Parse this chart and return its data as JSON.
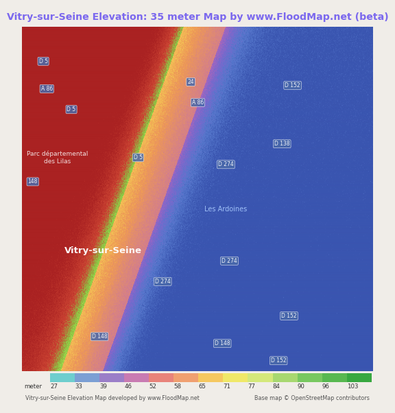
{
  "title": "Vitry-sur-Seine Elevation: 35 meter Map by www.FloodMap.net (beta)",
  "title_color": "#7b68ee",
  "title_bg": "#f0ede8",
  "colorbar_values": [
    27,
    33,
    39,
    46,
    52,
    58,
    65,
    71,
    77,
    84,
    90,
    96,
    103
  ],
  "colorbar_colors": [
    "#6ecece",
    "#7b9fd4",
    "#9b7ec8",
    "#c97bb2",
    "#e8837a",
    "#f0a070",
    "#f5c860",
    "#f0e868",
    "#d4e87a",
    "#a8d870",
    "#78c860",
    "#58b850",
    "#38a840"
  ],
  "footer_left": "Vitry-sur-Seine Elevation Map developed by www.FloodMap.net",
  "footer_right": "Base map © OpenStreetMap contributors",
  "footer_color": "#555555",
  "fig_width": 5.12,
  "fig_height": 5.82,
  "title_fontsize": 10.2,
  "cbar_label_fontsize": 6.2,
  "footer_fontsize": 5.8
}
